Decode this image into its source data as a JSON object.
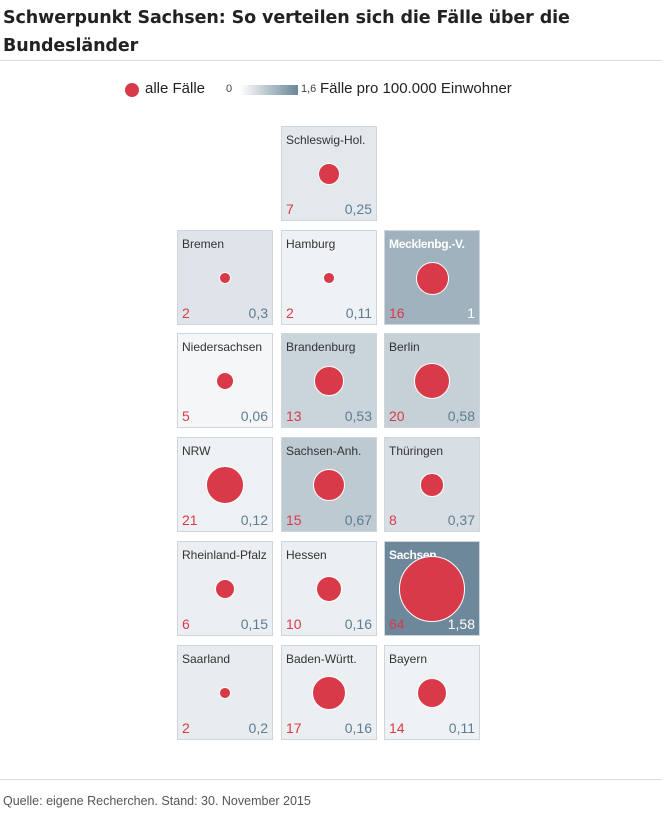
{
  "title": "Schwerpunkt Sachsen: So verteilen sich die Fälle über die Bundesländer",
  "legend": {
    "dot_label": "alle Fälle",
    "scale_min": "0",
    "scale_max": "1,6",
    "scale_label": "Fälle pro 100.000 Einwohner"
  },
  "source": "Quelle: eigene Recherchen. Stand: 30. November 2015",
  "colors": {
    "bubble": "#d93a4a",
    "scale_low": "#ffffff",
    "scale_high": "#6a8799",
    "rate_text": "#5e7d91"
  },
  "chart_data": {
    "type": "tile-grid-bubble",
    "size_metric": "alle Fälle",
    "color_metric": "Fälle pro 100.000 Einwohner",
    "color_range": [
      0,
      1.6
    ],
    "tiles": [
      {
        "name": "Schleswig-Hol.",
        "row": 0,
        "col": 1,
        "cases": 7,
        "rate": 0.25,
        "rate_label": "0,25"
      },
      {
        "name": "Bremen",
        "row": 1,
        "col": 0,
        "cases": 2,
        "rate": 0.3,
        "rate_label": "0,3"
      },
      {
        "name": "Hamburg",
        "row": 1,
        "col": 1,
        "cases": 2,
        "rate": 0.11,
        "rate_label": "0,11"
      },
      {
        "name": "Mecklenbg.-V.",
        "row": 1,
        "col": 2,
        "cases": 16,
        "rate": 1,
        "rate_label": "1"
      },
      {
        "name": "Niedersachsen",
        "row": 2,
        "col": 0,
        "cases": 5,
        "rate": 0.06,
        "rate_label": "0,06"
      },
      {
        "name": "Brandenburg",
        "row": 2,
        "col": 1,
        "cases": 13,
        "rate": 0.53,
        "rate_label": "0,53"
      },
      {
        "name": "Berlin",
        "row": 2,
        "col": 2,
        "cases": 20,
        "rate": 0.58,
        "rate_label": "0,58"
      },
      {
        "name": "NRW",
        "row": 3,
        "col": 0,
        "cases": 21,
        "rate": 0.12,
        "rate_label": "0,12"
      },
      {
        "name": "Sachsen-Anh.",
        "row": 3,
        "col": 1,
        "cases": 15,
        "rate": 0.67,
        "rate_label": "0,67"
      },
      {
        "name": "Thüringen",
        "row": 3,
        "col": 2,
        "cases": 8,
        "rate": 0.37,
        "rate_label": "0,37"
      },
      {
        "name": "Rheinland-Pfalz",
        "row": 4,
        "col": 0,
        "cases": 6,
        "rate": 0.15,
        "rate_label": "0,15"
      },
      {
        "name": "Hessen",
        "row": 4,
        "col": 1,
        "cases": 10,
        "rate": 0.16,
        "rate_label": "0,16"
      },
      {
        "name": "Sachsen",
        "row": 4,
        "col": 2,
        "cases": 64,
        "rate": 1.58,
        "rate_label": "1,58"
      },
      {
        "name": "Saarland",
        "row": 5,
        "col": 0,
        "cases": 2,
        "rate": 0.2,
        "rate_label": "0,2"
      },
      {
        "name": "Baden-Württ.",
        "row": 5,
        "col": 1,
        "cases": 17,
        "rate": 0.16,
        "rate_label": "0,16"
      },
      {
        "name": "Bayern",
        "row": 5,
        "col": 2,
        "cases": 14,
        "rate": 0.11,
        "rate_label": "0,11"
      }
    ]
  }
}
